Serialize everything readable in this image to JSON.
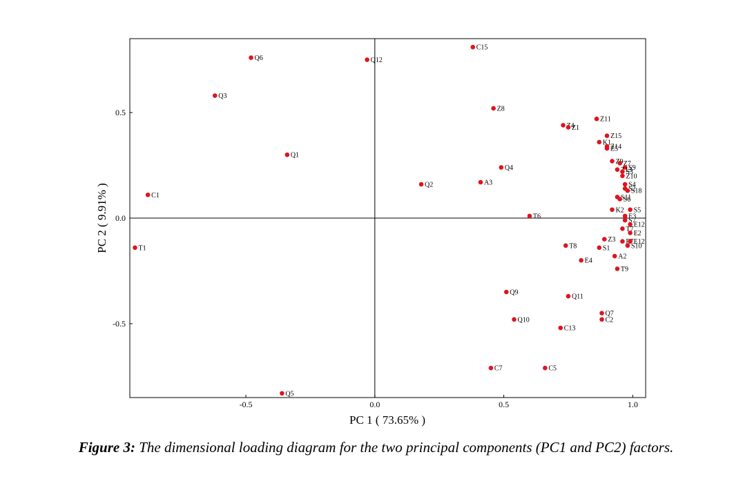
{
  "caption": {
    "lead": "Figure 3:",
    "text": " The dimensional loading diagram for the two principal components (PC1 and PC2) factors."
  },
  "chart_data": {
    "type": "scatter",
    "xlabel": "PC 1 ( 73.65% )",
    "ylabel": "PC 2 ( 9.91% )",
    "xlim": [
      -0.95,
      1.05
    ],
    "ylim": [
      -0.85,
      0.85
    ],
    "xticks": [
      -0.5,
      0.0,
      0.5,
      1.0
    ],
    "yticks": [
      -0.5,
      0.0,
      0.5
    ],
    "xtick_labels": [
      "-0.5",
      "0.0",
      "0.5",
      "1.0"
    ],
    "ytick_labels": [
      "-0.5",
      "0.0",
      "0.5"
    ],
    "grid": false,
    "reference_lines": [
      "x=0",
      "y=0"
    ],
    "marker_color": "#e0141e",
    "points": [
      {
        "label": "C15",
        "x": 0.38,
        "y": 0.81
      },
      {
        "label": "Q6",
        "x": -0.48,
        "y": 0.76
      },
      {
        "label": "Q12",
        "x": -0.03,
        "y": 0.75
      },
      {
        "label": "Q3",
        "x": -0.62,
        "y": 0.58
      },
      {
        "label": "Z8",
        "x": 0.46,
        "y": 0.52
      },
      {
        "label": "Z11",
        "x": 0.86,
        "y": 0.47
      },
      {
        "label": "Z4",
        "x": 0.73,
        "y": 0.44
      },
      {
        "label": "Z1",
        "x": 0.75,
        "y": 0.43
      },
      {
        "label": "Z15",
        "x": 0.9,
        "y": 0.39
      },
      {
        "label": "K1",
        "x": 0.87,
        "y": 0.36
      },
      {
        "label": "Z14",
        "x": 0.9,
        "y": 0.34
      },
      {
        "label": "Z5",
        "x": 0.9,
        "y": 0.33
      },
      {
        "label": "Q1",
        "x": -0.34,
        "y": 0.3
      },
      {
        "label": "Z9",
        "x": 0.92,
        "y": 0.27
      },
      {
        "label": "Z7",
        "x": 0.95,
        "y": 0.26
      },
      {
        "label": "S9",
        "x": 0.97,
        "y": 0.24
      },
      {
        "label": "Z13",
        "x": 0.94,
        "y": 0.23
      },
      {
        "label": "S3",
        "x": 0.96,
        "y": 0.22
      },
      {
        "label": "Z10",
        "x": 0.96,
        "y": 0.2
      },
      {
        "label": "Q4",
        "x": 0.49,
        "y": 0.24
      },
      {
        "label": "A3",
        "x": 0.41,
        "y": 0.17
      },
      {
        "label": "Q2",
        "x": 0.18,
        "y": 0.16
      },
      {
        "label": "C1",
        "x": -0.88,
        "y": 0.11
      },
      {
        "label": "S4",
        "x": 0.97,
        "y": 0.16
      },
      {
        "label": "S2",
        "x": 0.97,
        "y": 0.14
      },
      {
        "label": "S18",
        "x": 0.98,
        "y": 0.13
      },
      {
        "label": "S11",
        "x": 0.94,
        "y": 0.1
      },
      {
        "label": "S6",
        "x": 0.95,
        "y": 0.09
      },
      {
        "label": "K2",
        "x": 0.92,
        "y": 0.04
      },
      {
        "label": "S5",
        "x": 0.99,
        "y": 0.04
      },
      {
        "label": "T6",
        "x": 0.6,
        "y": 0.01
      },
      {
        "label": "E3",
        "x": 0.97,
        "y": 0.01
      },
      {
        "label": "S7",
        "x": 0.97,
        "y": -0.01
      },
      {
        "label": "E12",
        "x": 0.99,
        "y": -0.03
      },
      {
        "label": "T7",
        "x": 0.96,
        "y": -0.05
      },
      {
        "label": "E2",
        "x": 0.99,
        "y": -0.07
      },
      {
        "label": "T1",
        "x": -0.93,
        "y": -0.14
      },
      {
        "label": "Z3",
        "x": 0.89,
        "y": -0.1
      },
      {
        "label": "E7",
        "x": 0.96,
        "y": -0.11
      },
      {
        "label": "E12",
        "x": 0.99,
        "y": -0.11
      },
      {
        "label": "S10",
        "x": 0.98,
        "y": -0.13
      },
      {
        "label": "T8",
        "x": 0.74,
        "y": -0.13
      },
      {
        "label": "S1",
        "x": 0.87,
        "y": -0.14
      },
      {
        "label": "A2",
        "x": 0.93,
        "y": -0.18
      },
      {
        "label": "E4",
        "x": 0.8,
        "y": -0.2
      },
      {
        "label": "T9",
        "x": 0.94,
        "y": -0.24
      },
      {
        "label": "Q9",
        "x": 0.51,
        "y": -0.35
      },
      {
        "label": "Q11",
        "x": 0.75,
        "y": -0.37
      },
      {
        "label": "Q7",
        "x": 0.88,
        "y": -0.45
      },
      {
        "label": "Q10",
        "x": 0.54,
        "y": -0.48
      },
      {
        "label": "C2",
        "x": 0.88,
        "y": -0.48
      },
      {
        "label": "C13",
        "x": 0.72,
        "y": -0.52
      },
      {
        "label": "C7",
        "x": 0.45,
        "y": -0.71
      },
      {
        "label": "C5",
        "x": 0.66,
        "y": -0.71
      },
      {
        "label": "Q5",
        "x": -0.36,
        "y": -0.83
      }
    ]
  }
}
